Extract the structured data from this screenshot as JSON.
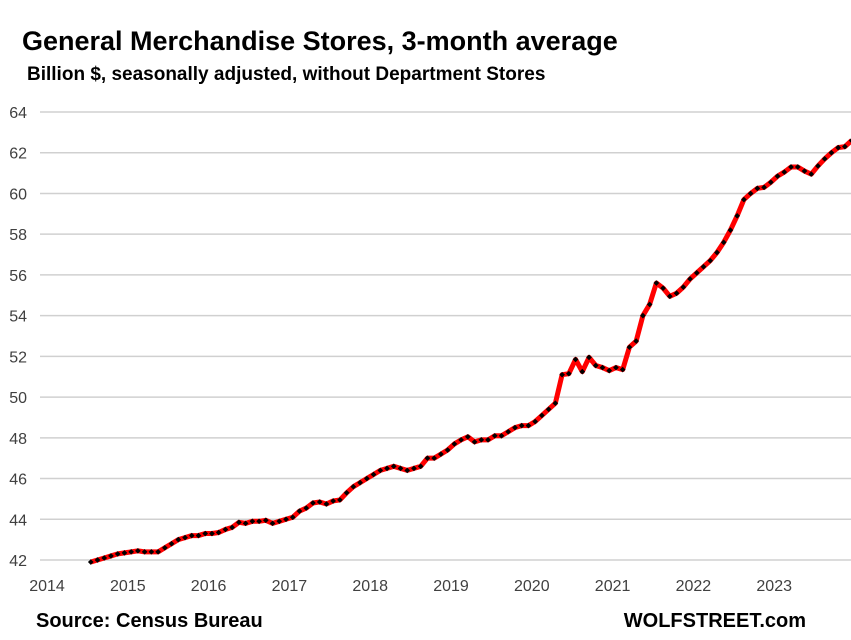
{
  "chart_data": {
    "type": "line",
    "title": "General Merchandise Stores, 3-month average",
    "subtitle": "Billion $, seasonally adjusted, without Department Stores",
    "xlabel": "",
    "ylabel": "",
    "ylim": [
      42,
      64
    ],
    "xlim": [
      2014,
      2024
    ],
    "yticks": [
      "42",
      "44",
      "46",
      "48",
      "50",
      "52",
      "54",
      "56",
      "58",
      "60",
      "62",
      "64"
    ],
    "xticks": [
      "2014",
      "2015",
      "2016",
      "2017",
      "2018",
      "2019",
      "2020",
      "2021",
      "2022",
      "2023"
    ],
    "grid": true,
    "legend": "none",
    "series": [
      {
        "name": "General Merchandise Stores",
        "color": "#ff0000",
        "marker_color": "#000000",
        "start": "2014-07",
        "frequency": "monthly",
        "values": [
          41.9,
          42.0,
          42.1,
          42.2,
          42.3,
          42.35,
          42.4,
          42.45,
          42.4,
          42.4,
          42.4,
          42.6,
          42.8,
          43.0,
          43.1,
          43.2,
          43.2,
          43.3,
          43.3,
          43.35,
          43.5,
          43.6,
          43.85,
          43.8,
          43.9,
          43.9,
          43.95,
          43.8,
          43.9,
          44.0,
          44.1,
          44.4,
          44.55,
          44.8,
          44.85,
          44.75,
          44.9,
          44.95,
          45.3,
          45.6,
          45.8,
          46.0,
          46.2,
          46.4,
          46.5,
          46.6,
          46.5,
          46.4,
          46.5,
          46.6,
          47.0,
          47.0,
          47.2,
          47.4,
          47.7,
          47.9,
          48.05,
          47.8,
          47.9,
          47.9,
          48.1,
          48.1,
          48.3,
          48.5,
          48.6,
          48.6,
          48.8,
          49.1,
          49.4,
          49.7,
          51.1,
          51.15,
          51.85,
          51.25,
          51.95,
          51.55,
          51.45,
          51.3,
          51.45,
          51.35,
          52.45,
          52.75,
          54.0,
          54.55,
          55.6,
          55.35,
          54.95,
          55.1,
          55.4,
          55.8,
          56.1,
          56.4,
          56.7,
          57.1,
          57.6,
          58.2,
          58.9,
          59.7,
          60.0,
          60.25,
          60.3,
          60.55,
          60.85,
          61.05,
          61.3,
          61.3,
          61.1,
          60.95,
          61.35,
          61.7,
          62.0,
          62.25,
          62.3,
          62.6
        ]
      }
    ]
  },
  "footer": {
    "source": "Source: Census Bureau",
    "brand": "WOLFSTREET.com"
  }
}
